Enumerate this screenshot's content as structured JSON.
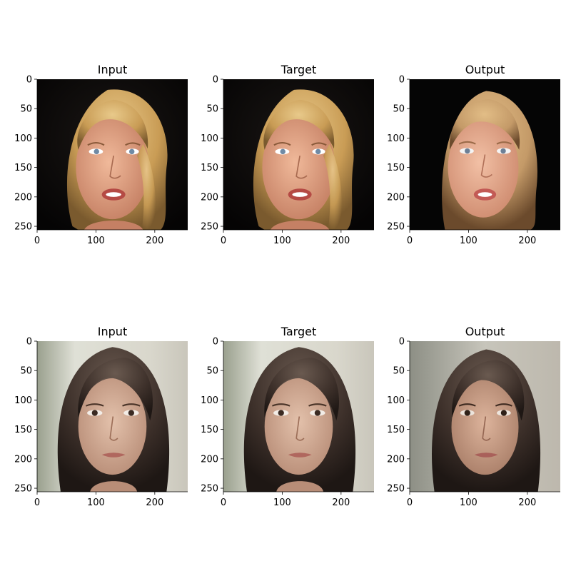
{
  "figure": {
    "panels": [
      {
        "title": "Input",
        "subject": "blonde-woman",
        "variant": "input"
      },
      {
        "title": "Target",
        "subject": "blonde-woman",
        "variant": "target"
      },
      {
        "title": "Output",
        "subject": "blonde-woman",
        "variant": "output"
      },
      {
        "title": "Input",
        "subject": "brunette-woman",
        "variant": "input"
      },
      {
        "title": "Target",
        "subject": "brunette-woman",
        "variant": "target"
      },
      {
        "title": "Output",
        "subject": "brunette-woman",
        "variant": "output"
      }
    ],
    "x_ticks": [
      0,
      100,
      200
    ],
    "y_ticks": [
      0,
      50,
      100,
      150,
      200,
      250
    ],
    "axis_range": [
      0,
      256
    ]
  }
}
